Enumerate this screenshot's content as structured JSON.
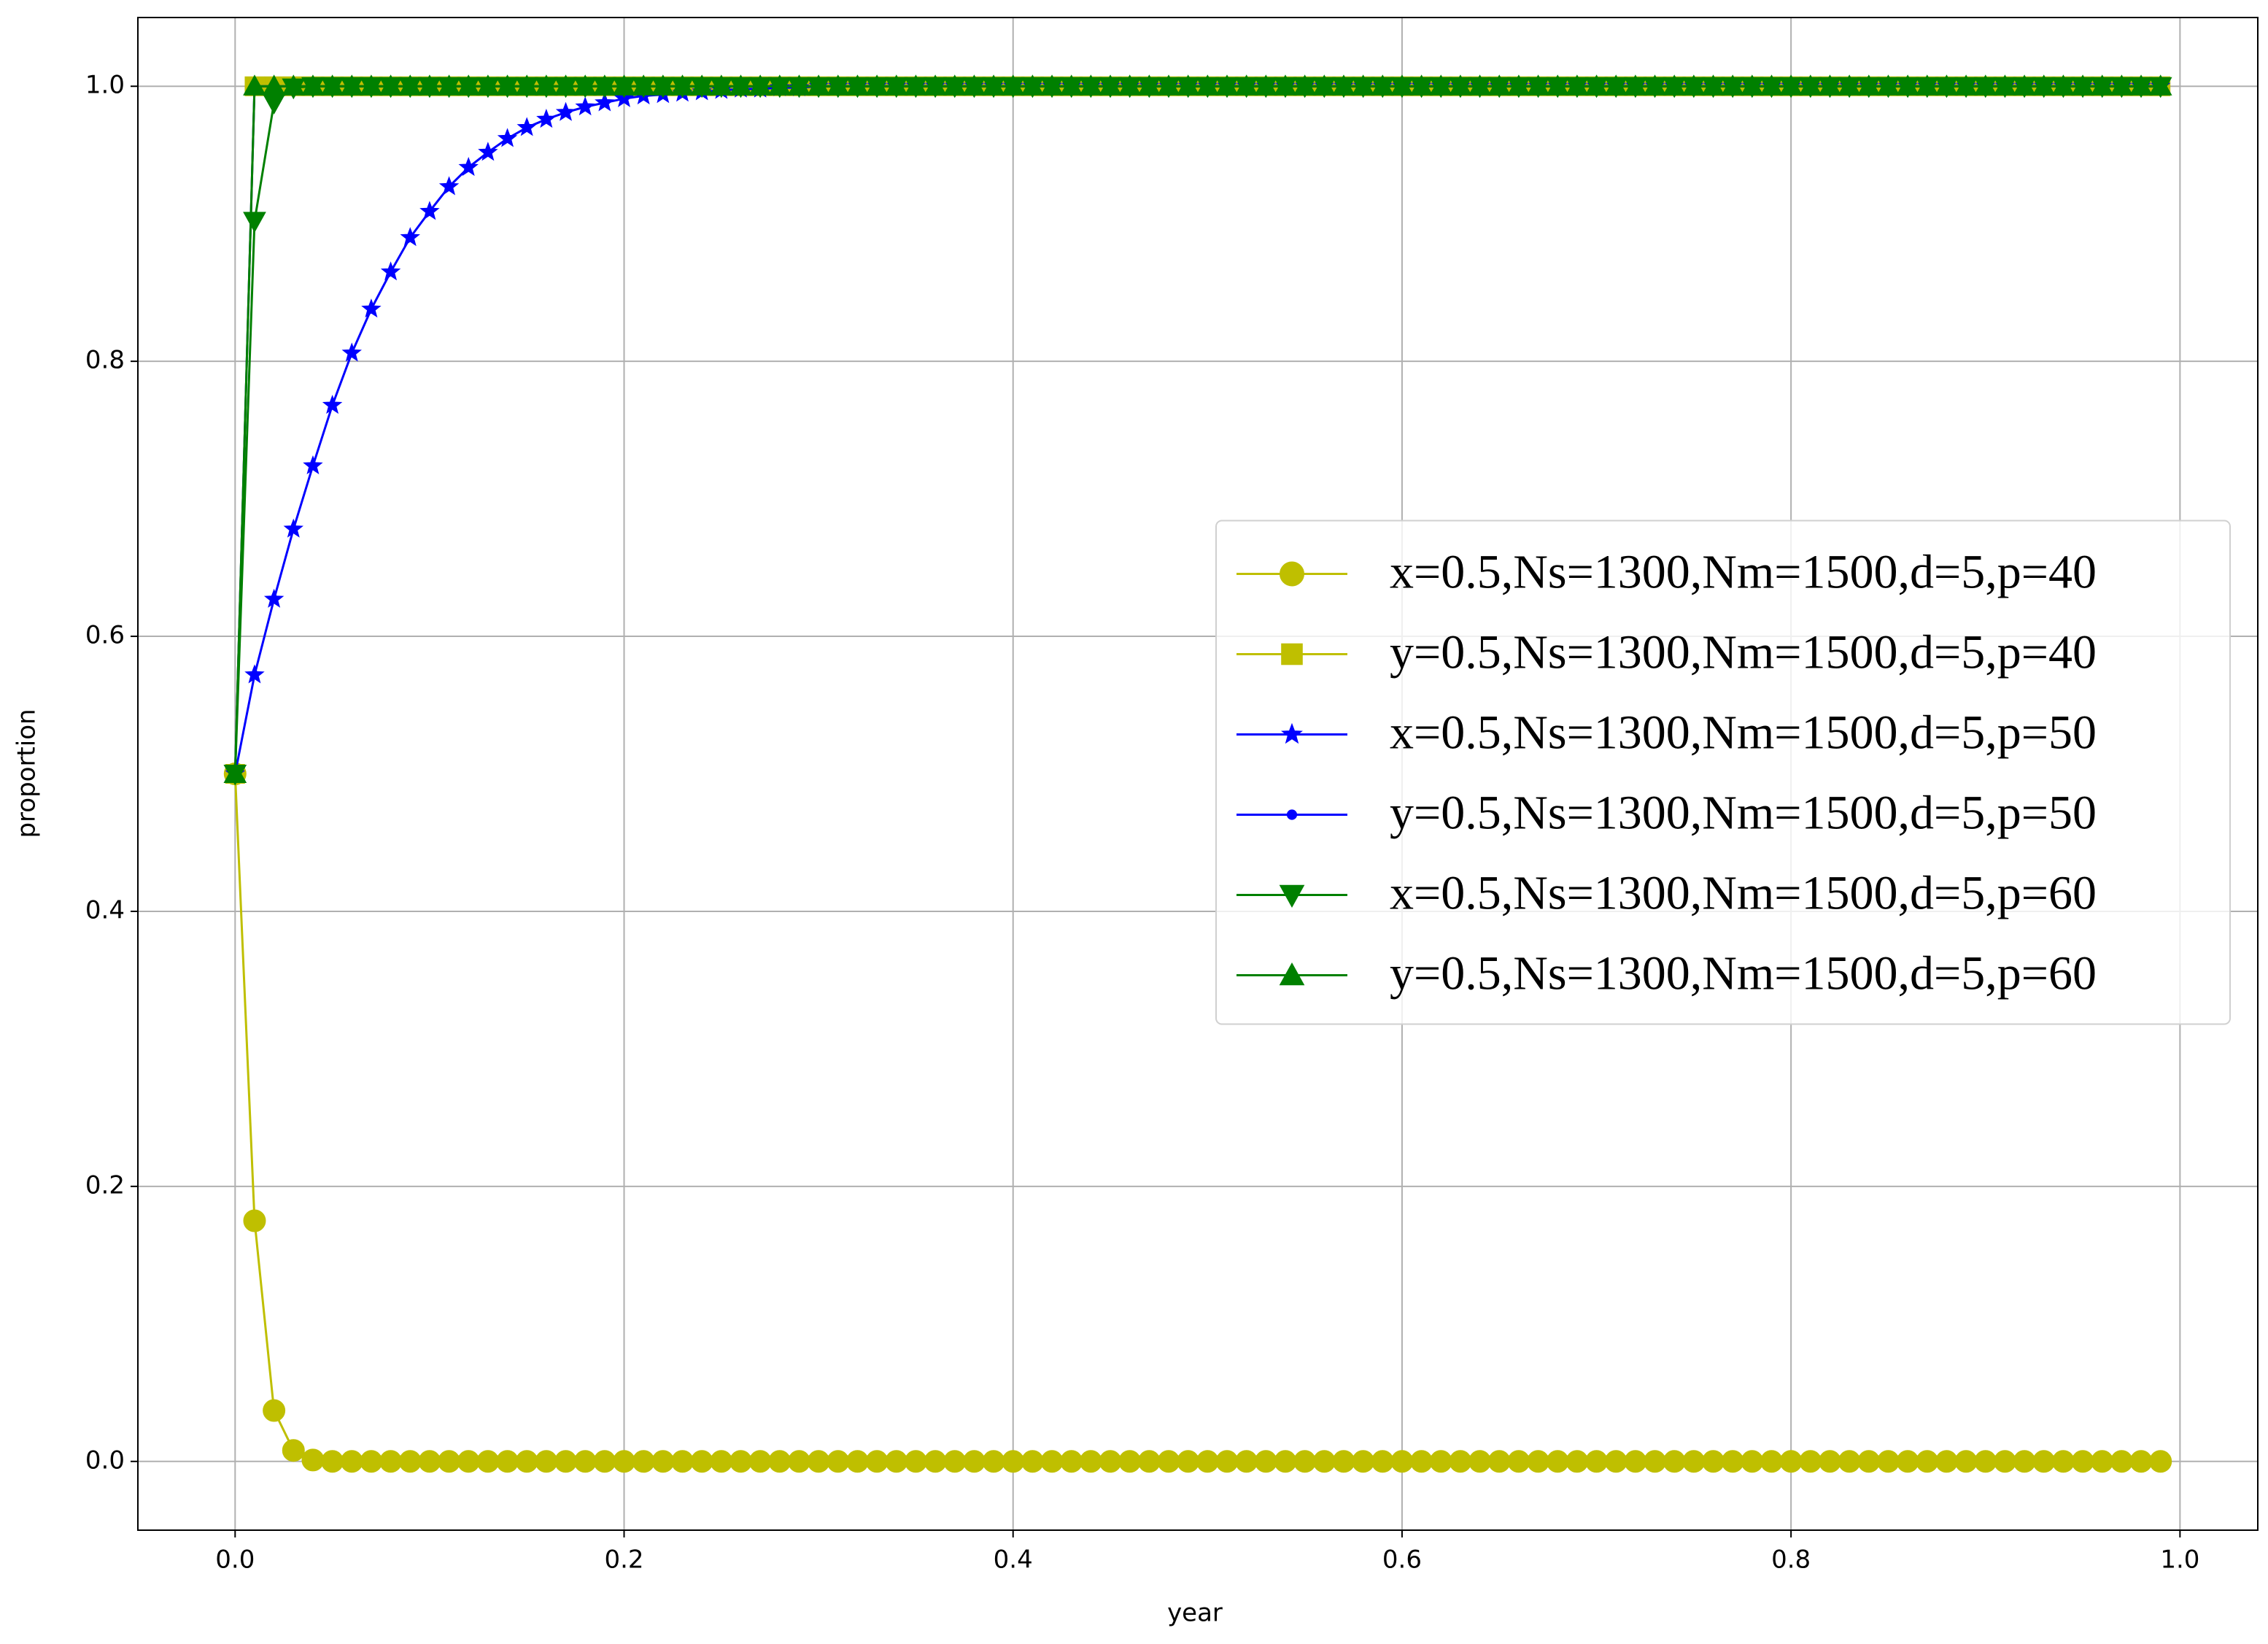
{
  "chart_data": {
    "type": "line",
    "xlabel": "year",
    "ylabel": "proportion",
    "xlim": [
      -0.05,
      1.04
    ],
    "ylim": [
      -0.05,
      1.05
    ],
    "xticks": [
      {
        "value": 0,
        "label": "0.0"
      },
      0.2,
      0.4,
      0.6,
      0.8,
      {
        "value": 1,
        "label": "1.0"
      }
    ],
    "yticks": [
      {
        "value": 0,
        "label": "0.0"
      },
      0.2,
      0.4,
      0.6,
      0.8,
      {
        "value": 1,
        "label": "1.0"
      }
    ],
    "grid": true,
    "legend": "center right",
    "x": [
      0,
      0.01,
      0.02,
      0.03,
      0.04,
      0.05,
      0.06,
      0.07,
      0.08,
      0.09,
      0.1,
      0.11,
      0.12,
      0.13,
      0.14,
      0.15,
      0.16,
      0.17,
      0.18,
      0.19,
      0.2,
      0.21,
      0.22,
      0.23,
      0.24,
      0.25,
      0.26,
      0.27,
      0.28,
      0.29,
      0.3,
      0.31,
      0.32,
      0.33,
      0.34,
      0.35,
      0.36,
      0.37,
      0.38,
      0.39,
      0.4,
      0.41,
      0.42,
      0.43,
      0.44,
      0.45,
      0.46,
      0.47,
      0.48,
      0.49,
      0.5,
      0.51,
      0.52,
      0.53,
      0.54,
      0.55,
      0.56,
      0.57,
      0.58,
      0.59,
      0.6,
      0.61,
      0.62,
      0.63,
      0.64,
      0.65,
      0.66,
      0.67,
      0.68,
      0.69,
      0.7,
      0.71,
      0.72,
      0.73,
      0.74,
      0.75,
      0.76,
      0.77,
      0.78,
      0.79,
      0.8,
      0.81,
      0.82,
      0.83,
      0.84,
      0.85,
      0.86,
      0.87,
      0.88,
      0.89,
      0.9,
      0.91,
      0.92,
      0.93,
      0.94,
      0.95,
      0.96,
      0.97,
      0.98,
      0.99
    ],
    "series": [
      {
        "name": "x=0.5,Ns=1300,Nm=1500,d=5,p=40",
        "color": "#bfbf00",
        "marker": "circle",
        "values": [
          0.5,
          0.175,
          0.037,
          0.008,
          0.001,
          0,
          0,
          0,
          0,
          0,
          0,
          0,
          0,
          0,
          0,
          0,
          0,
          0,
          0,
          0,
          0,
          0,
          0,
          0,
          0,
          0,
          0,
          0,
          0,
          0,
          0,
          0,
          0,
          0,
          0,
          0,
          0,
          0,
          0,
          0,
          0,
          0,
          0,
          0,
          0,
          0,
          0,
          0,
          0,
          0,
          0,
          0,
          0,
          0,
          0,
          0,
          0,
          0,
          0,
          0,
          0,
          0,
          0,
          0,
          0,
          0,
          0,
          0,
          0,
          0,
          0,
          0,
          0,
          0,
          0,
          0,
          0,
          0,
          0,
          0,
          0,
          0,
          0,
          0,
          0,
          0,
          0,
          0,
          0,
          0,
          0,
          0,
          0,
          0,
          0,
          0,
          0,
          0,
          0,
          0
        ]
      },
      {
        "name": "y=0.5,Ns=1300,Nm=1500,d=5,p=40",
        "color": "#bfbf00",
        "marker": "square",
        "values": [
          0.5,
          1,
          1,
          1,
          1,
          1,
          1,
          1,
          1,
          1,
          1,
          1,
          1,
          1,
          1,
          1,
          1,
          1,
          1,
          1,
          1,
          1,
          1,
          1,
          1,
          1,
          1,
          1,
          1,
          1,
          1,
          1,
          1,
          1,
          1,
          1,
          1,
          1,
          1,
          1,
          1,
          1,
          1,
          1,
          1,
          1,
          1,
          1,
          1,
          1,
          1,
          1,
          1,
          1,
          1,
          1,
          1,
          1,
          1,
          1,
          1,
          1,
          1,
          1,
          1,
          1,
          1,
          1,
          1,
          1,
          1,
          1,
          1,
          1,
          1,
          1,
          1,
          1,
          1,
          1,
          1,
          1,
          1,
          1,
          1,
          1,
          1,
          1,
          1,
          1,
          1,
          1,
          1,
          1,
          1,
          1,
          1,
          1,
          1,
          1
        ]
      },
      {
        "name": "x=0.5,Ns=1300,Nm=1500,d=5,p=50",
        "color": "#0000ff",
        "marker": "star",
        "values": [
          0.5,
          0.572,
          0.627,
          0.678,
          0.724,
          0.768,
          0.806,
          0.838,
          0.865,
          0.89,
          0.909,
          0.927,
          0.941,
          0.952,
          0.962,
          0.97,
          0.976,
          0.981,
          0.985,
          0.988,
          0.991,
          0.993,
          0.994,
          0.995,
          0.996,
          0.997,
          0.998,
          0.998,
          0.999,
          0.999,
          1,
          1,
          1,
          1,
          1,
          1,
          1,
          1,
          1,
          1,
          1,
          1,
          1,
          1,
          1,
          1,
          1,
          1,
          1,
          1,
          1,
          1,
          1,
          1,
          1,
          1,
          1,
          1,
          1,
          1,
          1,
          1,
          1,
          1,
          1,
          1,
          1,
          1,
          1,
          1,
          1,
          1,
          1,
          1,
          1,
          1,
          1,
          1,
          1,
          1,
          1,
          1,
          1,
          1,
          1,
          1,
          1,
          1,
          1,
          1,
          1,
          1,
          1,
          1,
          1,
          1,
          1,
          1,
          1,
          1
        ]
      },
      {
        "name": "y=0.5,Ns=1300,Nm=1500,d=5,p=50",
        "color": "#0000ff",
        "marker": "dot",
        "values": [
          0.5,
          1,
          1,
          1,
          1,
          1,
          1,
          1,
          1,
          1,
          1,
          1,
          1,
          1,
          1,
          1,
          1,
          1,
          1,
          1,
          1,
          1,
          1,
          1,
          1,
          1,
          1,
          1,
          1,
          1,
          1,
          1,
          1,
          1,
          1,
          1,
          1,
          1,
          1,
          1,
          1,
          1,
          1,
          1,
          1,
          1,
          1,
          1,
          1,
          1,
          1,
          1,
          1,
          1,
          1,
          1,
          1,
          1,
          1,
          1,
          1,
          1,
          1,
          1,
          1,
          1,
          1,
          1,
          1,
          1,
          1,
          1,
          1,
          1,
          1,
          1,
          1,
          1,
          1,
          1,
          1,
          1,
          1,
          1,
          1,
          1,
          1,
          1,
          1,
          1,
          1,
          1,
          1,
          1,
          1,
          1,
          1,
          1,
          1,
          1
        ]
      },
      {
        "name": "x=0.5,Ns=1300,Nm=1500,d=5,p=60",
        "color": "#008000",
        "marker": "triangle-down",
        "values": [
          0.5,
          0.902,
          0.988,
          0.999,
          1,
          1,
          1,
          1,
          1,
          1,
          1,
          1,
          1,
          1,
          1,
          1,
          1,
          1,
          1,
          1,
          1,
          1,
          1,
          1,
          1,
          1,
          1,
          1,
          1,
          1,
          1,
          1,
          1,
          1,
          1,
          1,
          1,
          1,
          1,
          1,
          1,
          1,
          1,
          1,
          1,
          1,
          1,
          1,
          1,
          1,
          1,
          1,
          1,
          1,
          1,
          1,
          1,
          1,
          1,
          1,
          1,
          1,
          1,
          1,
          1,
          1,
          1,
          1,
          1,
          1,
          1,
          1,
          1,
          1,
          1,
          1,
          1,
          1,
          1,
          1,
          1,
          1,
          1,
          1,
          1,
          1,
          1,
          1,
          1,
          1,
          1,
          1,
          1,
          1,
          1,
          1,
          1,
          1,
          1,
          1
        ]
      },
      {
        "name": "y=0.5,Ns=1300,Nm=1500,d=5,p=60",
        "color": "#008000",
        "marker": "triangle-up",
        "values": [
          0.5,
          1,
          1,
          1,
          1,
          1,
          1,
          1,
          1,
          1,
          1,
          1,
          1,
          1,
          1,
          1,
          1,
          1,
          1,
          1,
          1,
          1,
          1,
          1,
          1,
          1,
          1,
          1,
          1,
          1,
          1,
          1,
          1,
          1,
          1,
          1,
          1,
          1,
          1,
          1,
          1,
          1,
          1,
          1,
          1,
          1,
          1,
          1,
          1,
          1,
          1,
          1,
          1,
          1,
          1,
          1,
          1,
          1,
          1,
          1,
          1,
          1,
          1,
          1,
          1,
          1,
          1,
          1,
          1,
          1,
          1,
          1,
          1,
          1,
          1,
          1,
          1,
          1,
          1,
          1,
          1,
          1,
          1,
          1,
          1,
          1,
          1,
          1,
          1,
          1,
          1,
          1,
          1,
          1,
          1,
          1,
          1,
          1,
          1,
          1
        ]
      }
    ]
  }
}
